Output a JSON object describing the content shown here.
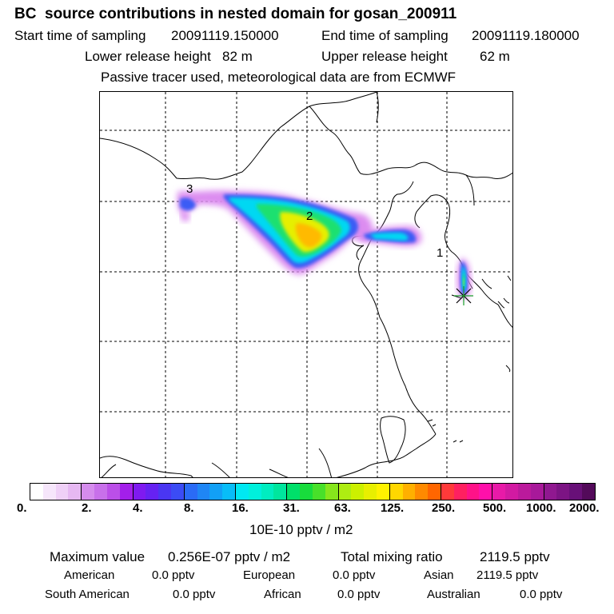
{
  "header": {
    "title": "BC  source contributions in nested domain for gosan_200911",
    "start_label": "Start time of sampling",
    "start_value": "20091119.150000",
    "end_label": "End time of sampling",
    "end_value": "20091119.180000",
    "lower_label": "Lower release height",
    "lower_value": "82 m",
    "upper_label": "Upper release height",
    "upper_value": "62 m",
    "tracer_note": "Passive tracer used, meteorological data are from ECMWF"
  },
  "map": {
    "region_labels": [
      "1",
      "2",
      "3"
    ],
    "receptor_marker": "✳"
  },
  "colorbar": {
    "ticks": [
      "0.",
      "2.",
      "4.",
      "8.",
      "16.",
      "31.",
      "63.",
      "125.",
      "250.",
      "500.",
      "1000.",
      "2000."
    ],
    "colors": [
      "#ffffff",
      "#f6e6fb",
      "#efd0f7",
      "#e6b8f2",
      "#d58ced",
      "#c870ea",
      "#bb4fe8",
      "#a31fea",
      "#7f1af0",
      "#6622f2",
      "#4a36f2",
      "#3b4cf5",
      "#2a6bf6",
      "#1f86f5",
      "#12a0f6",
      "#08bdf8",
      "#00e8f2",
      "#00f0dc",
      "#00edc0",
      "#00e69e",
      "#00e06a",
      "#18dc3c",
      "#48e02a",
      "#86e61c",
      "#aeed12",
      "#ccf000",
      "#e8ef00",
      "#fff200",
      "#ffd700",
      "#ffb000",
      "#ff8a00",
      "#ff6600",
      "#ff3a3a",
      "#ff2060",
      "#ff1288",
      "#ff10aa",
      "#e81aa8",
      "#d21aa2",
      "#bb1a9c",
      "#a8199a",
      "#901890",
      "#7c1484",
      "#681078",
      "#530a5a"
    ],
    "unit": "10E-10 pptv / m2"
  },
  "stats": {
    "max_label": "Maximum value",
    "max_value": "0.256E-07 pptv / m2",
    "total_label": "Total mixing ratio",
    "total_value": "2119.5 pptv",
    "american_label": "American",
    "american_value": "0.0 pptv",
    "european_label": "European",
    "european_value": "0.0 pptv",
    "asian_label": "Asian",
    "asian_value": "2119.5 pptv",
    "south_american_label": "South American",
    "south_american_value": "0.0 pptv",
    "african_label": "African",
    "african_value": "0.0 pptv",
    "australian_label": "Australian",
    "australian_value": "0.0 pptv"
  }
}
